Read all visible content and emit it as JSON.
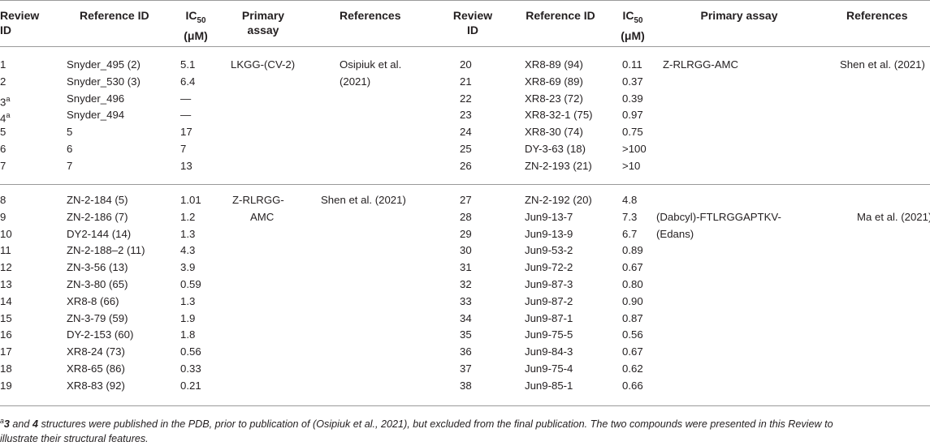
{
  "header": {
    "review_id_1": "Review ID",
    "reference_id_1": "Reference ID",
    "ic50_1": "IC",
    "ic50_sub": "50",
    "ic50_unit": "(μM)",
    "assay_1": "Primary assay",
    "references_1": "References",
    "review_id_2": "Review ID",
    "reference_id_2": "Reference ID",
    "ic50_2": "IC",
    "assay_2": "Primary assay",
    "references_2": "References"
  },
  "left_group1": {
    "rows": [
      {
        "id": "1",
        "ref": "Snyder_495 (2)",
        "ic50": "5.1"
      },
      {
        "id": "2",
        "ref": "Snyder_530 (3)",
        "ic50": "6.4"
      },
      {
        "id": "3",
        "sup": "a",
        "ref": "Snyder_496",
        "ic50": "—"
      },
      {
        "id": "4",
        "sup": "a",
        "ref": "Snyder_494",
        "ic50": "—"
      },
      {
        "id": "5",
        "ref": "5",
        "ic50": "17"
      },
      {
        "id": "6",
        "ref": "6",
        "ic50": "7"
      },
      {
        "id": "7",
        "ref": "7",
        "ic50": "13"
      }
    ],
    "assay": "LKGG-(CV-2)",
    "reference_line1": "Osipiuk et al.",
    "reference_line2": "(2021)"
  },
  "left_group2": {
    "rows": [
      {
        "id": "8",
        "ref": "ZN-2-184 (5)",
        "ic50": "1.01"
      },
      {
        "id": "9",
        "ref": "ZN-2-186 (7)",
        "ic50": "1.2"
      },
      {
        "id": "10",
        "ref": "DY2-144 (14)",
        "ic50": "1.3"
      },
      {
        "id": "11",
        "ref": "ZN-2-188–2 (11)",
        "ic50": "4.3"
      },
      {
        "id": "12",
        "ref": "ZN-3-56 (13)",
        "ic50": "3.9"
      },
      {
        "id": "13",
        "ref": "ZN-3-80 (65)",
        "ic50": "0.59"
      },
      {
        "id": "14",
        "ref": "XR8-8 (66)",
        "ic50": "1.3"
      },
      {
        "id": "15",
        "ref": "ZN-3-79 (59)",
        "ic50": "1.9"
      },
      {
        "id": "16",
        "ref": "DY-2-153 (60)",
        "ic50": "1.8"
      },
      {
        "id": "17",
        "ref": "XR8-24 (73)",
        "ic50": "0.56"
      },
      {
        "id": "18",
        "ref": "XR8-65 (86)",
        "ic50": "0.33"
      },
      {
        "id": "19",
        "ref": "XR8-83 (92)",
        "ic50": "0.21"
      }
    ],
    "assay_line1": "Z-RLRGG-",
    "assay_line2": "AMC",
    "reference": "Shen et al. (2021)"
  },
  "right_group1": {
    "rows": [
      {
        "id": "20",
        "ref": "XR8-89 (94)",
        "ic50": "0.11"
      },
      {
        "id": "21",
        "ref": "XR8-69 (89)",
        "ic50": "0.37"
      },
      {
        "id": "22",
        "ref": "XR8-23 (72)",
        "ic50": "0.39"
      },
      {
        "id": "23",
        "ref": "XR8-32-1 (75)",
        "ic50": "0.97"
      },
      {
        "id": "24",
        "ref": "XR8-30 (74)",
        "ic50": "0.75"
      },
      {
        "id": "25",
        "ref": "DY-3-63 (18)",
        "ic50": ">100"
      },
      {
        "id": "26",
        "ref": "ZN-2-193 (21)",
        "ic50": ">10"
      }
    ],
    "assay": "Z-RLRGG-AMC",
    "reference": "Shen et al. (2021)"
  },
  "right_group2": {
    "rows": [
      {
        "id": "27",
        "ref": "ZN-2-192 (20)",
        "ic50": "4.8"
      },
      {
        "id": "28",
        "ref": "Jun9-13-7",
        "ic50": "7.3"
      },
      {
        "id": "29",
        "ref": "Jun9-13-9",
        "ic50": "6.7"
      },
      {
        "id": "30",
        "ref": "Jun9-53-2",
        "ic50": "0.89"
      },
      {
        "id": "31",
        "ref": "Jun9-72-2",
        "ic50": "0.67"
      },
      {
        "id": "32",
        "ref": "Jun9-87-3",
        "ic50": "0.80"
      },
      {
        "id": "33",
        "ref": "Jun9-87-2",
        "ic50": "0.90"
      },
      {
        "id": "34",
        "ref": "Jun9-87-1",
        "ic50": "0.87"
      },
      {
        "id": "35",
        "ref": "Jun9-75-5",
        "ic50": "0.56"
      },
      {
        "id": "36",
        "ref": "Jun9-84-3",
        "ic50": "0.67"
      },
      {
        "id": "37",
        "ref": "Jun9-75-4",
        "ic50": "0.62"
      },
      {
        "id": "38",
        "ref": "Jun9-85-1",
        "ic50": "0.66"
      }
    ],
    "assay_line1": "(Dabcyl)-FTLRGGAPTKV-",
    "assay_line2": "(Edans)",
    "reference": "Ma et al. (2021)"
  },
  "footnote": {
    "marker": "a",
    "bold1": "3",
    "and": " and ",
    "bold2": "4",
    "text_line1": " structures were published in the PDB, prior to publication of (Osipiuk et al., 2021), but excluded from the final publication. The two compounds were presented in this Review to",
    "text_line2": "illustrate their structural features."
  }
}
